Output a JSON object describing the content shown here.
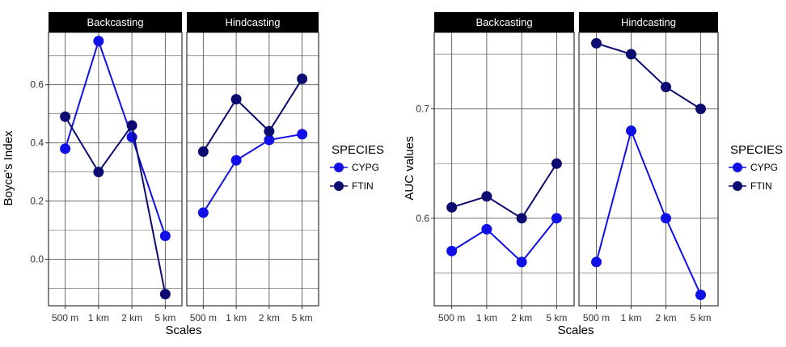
{
  "chart_data": [
    {
      "type": "line",
      "xlabel": "Scales",
      "ylabel": "Boyce's Index",
      "ylim": [
        -0.16,
        0.78
      ],
      "yticks": [
        0.0,
        0.2,
        0.4,
        0.6
      ],
      "ytick_labels": [
        "0.0",
        "0.2",
        "0.4",
        "0.6"
      ],
      "categories": [
        "500 m",
        "1 km",
        "2 km",
        "5 km"
      ],
      "legend": {
        "title": "SPECIES",
        "position": "right"
      },
      "grid": true,
      "facets": [
        {
          "label": "Backcasting",
          "series": [
            {
              "name": "CYPG",
              "color": "#1010e6",
              "values": [
                0.38,
                0.75,
                0.42,
                0.08
              ]
            },
            {
              "name": "FTIN",
              "color": "#0b0b70",
              "values": [
                0.49,
                0.3,
                0.46,
                -0.12
              ]
            }
          ]
        },
        {
          "label": "Hindcasting",
          "series": [
            {
              "name": "CYPG",
              "color": "#1010e6",
              "values": [
                0.16,
                0.34,
                0.41,
                0.43
              ]
            },
            {
              "name": "FTIN",
              "color": "#0b0b70",
              "values": [
                0.37,
                0.55,
                0.44,
                0.62
              ]
            }
          ]
        }
      ]
    },
    {
      "type": "line",
      "xlabel": "Scales",
      "ylabel": "AUC values",
      "ylim": [
        0.52,
        0.77
      ],
      "yticks": [
        0.6,
        0.7
      ],
      "ytick_labels": [
        "0.6",
        "0.7"
      ],
      "categories": [
        "500 m",
        "1 km",
        "2 km",
        "5 km"
      ],
      "legend": {
        "title": "SPECIES",
        "position": "right"
      },
      "grid": true,
      "facets": [
        {
          "label": "Backcasting",
          "series": [
            {
              "name": "CYPG",
              "color": "#1010e6",
              "values": [
                0.57,
                0.59,
                0.56,
                0.6
              ]
            },
            {
              "name": "FTIN",
              "color": "#0b0b70",
              "values": [
                0.61,
                0.62,
                0.6,
                0.65
              ]
            }
          ]
        },
        {
          "label": "Hindcasting",
          "series": [
            {
              "name": "CYPG",
              "color": "#1010e6",
              "values": [
                0.56,
                0.68,
                0.6,
                0.53
              ]
            },
            {
              "name": "FTIN",
              "color": "#0b0b70",
              "values": [
                0.76,
                0.75,
                0.72,
                0.7
              ]
            }
          ]
        }
      ]
    }
  ]
}
